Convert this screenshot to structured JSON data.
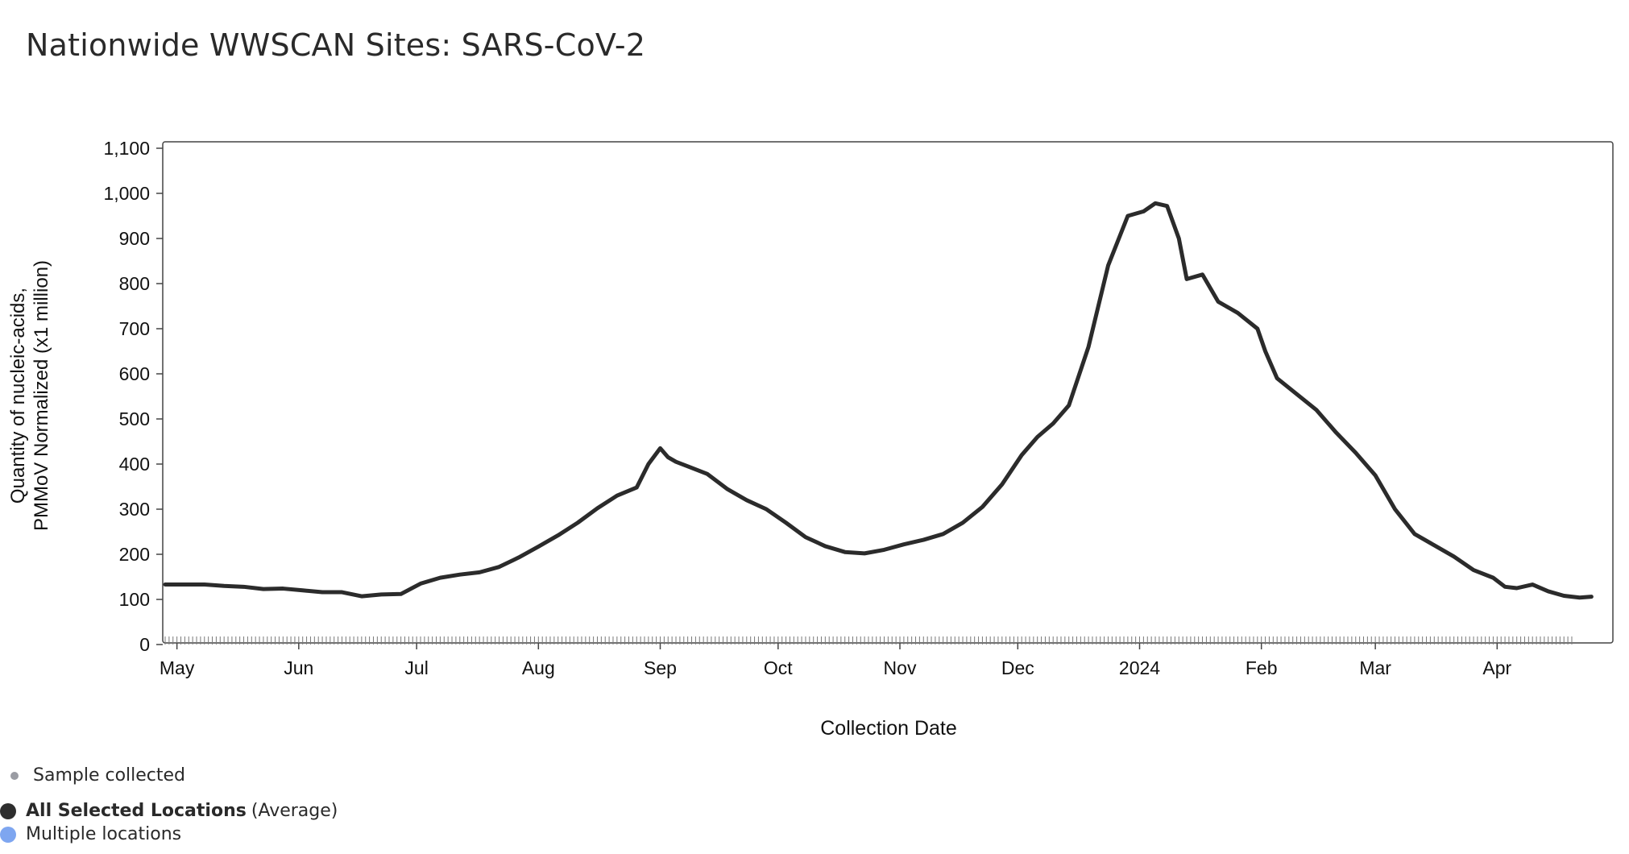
{
  "title": "Nationwide WWSCAN Sites: SARS-CoV-2",
  "colors": {
    "line": "#2b2b2b",
    "sample_dot": "#9a9ca3",
    "all_locations": "#2e2e2e",
    "multiple_locations": "#7ea6f0",
    "axis": "#444444"
  },
  "legend": {
    "sample_collected": "Sample collected",
    "all_selected_bold": "All Selected Locations",
    "all_selected_suffix": "(Average)",
    "multiple_locations": "Multiple locations"
  },
  "chart_data": {
    "type": "line",
    "title": "Nationwide WWSCAN Sites: SARS-CoV-2",
    "xlabel": "Collection Date",
    "ylabel_lines": [
      "Quantity of nucleic-acids,",
      "PMMoV Normalized (x1 million)"
    ],
    "ylim": [
      0,
      1100
    ],
    "yticks": [
      0,
      100,
      200,
      300,
      400,
      500,
      600,
      700,
      800,
      900,
      1000,
      1100
    ],
    "ytick_labels": [
      "0",
      "100",
      "200",
      "300",
      "400",
      "500",
      "600",
      "700",
      "800",
      "900",
      "1,000",
      "1,100"
    ],
    "xlim": [
      "2023-04-28",
      "2024-04-28"
    ],
    "xticks": [
      {
        "date": "2023-05-01",
        "label": "May"
      },
      {
        "date": "2023-06-01",
        "label": "Jun"
      },
      {
        "date": "2023-07-01",
        "label": "Jul"
      },
      {
        "date": "2023-08-01",
        "label": "Aug"
      },
      {
        "date": "2023-09-01",
        "label": "Sep"
      },
      {
        "date": "2023-10-01",
        "label": "Oct"
      },
      {
        "date": "2023-11-01",
        "label": "Nov"
      },
      {
        "date": "2023-12-01",
        "label": "Dec"
      },
      {
        "date": "2024-01-01",
        "label": "2024"
      },
      {
        "date": "2024-02-01",
        "label": "Feb"
      },
      {
        "date": "2024-03-01",
        "label": "Mar"
      },
      {
        "date": "2024-04-01",
        "label": "Apr"
      }
    ],
    "grid": false,
    "legend_position": "bottom-left",
    "series": [
      {
        "points": [
          [
            "2023-04-28",
            133
          ],
          [
            "2023-05-03",
            133
          ],
          [
            "2023-05-08",
            133
          ],
          [
            "2023-05-13",
            130
          ],
          [
            "2023-05-18",
            128
          ],
          [
            "2023-05-23",
            123
          ],
          [
            "2023-05-28",
            124
          ],
          [
            "2023-06-02",
            120
          ],
          [
            "2023-06-07",
            116
          ],
          [
            "2023-06-12",
            116
          ],
          [
            "2023-06-17",
            107
          ],
          [
            "2023-06-22",
            111
          ],
          [
            "2023-06-27",
            112
          ],
          [
            "2023-07-02",
            135
          ],
          [
            "2023-07-07",
            148
          ],
          [
            "2023-07-12",
            155
          ],
          [
            "2023-07-17",
            160
          ],
          [
            "2023-07-22",
            172
          ],
          [
            "2023-07-27",
            193
          ],
          [
            "2023-08-01",
            217
          ],
          [
            "2023-08-06",
            242
          ],
          [
            "2023-08-11",
            270
          ],
          [
            "2023-08-16",
            302
          ],
          [
            "2023-08-21",
            330
          ],
          [
            "2023-08-26",
            348
          ],
          [
            "2023-08-29",
            400
          ],
          [
            "2023-09-01",
            435
          ],
          [
            "2023-09-03",
            415
          ],
          [
            "2023-09-05",
            405
          ],
          [
            "2023-09-08",
            395
          ],
          [
            "2023-09-13",
            378
          ],
          [
            "2023-09-18",
            345
          ],
          [
            "2023-09-23",
            320
          ],
          [
            "2023-09-28",
            300
          ],
          [
            "2023-10-03",
            270
          ],
          [
            "2023-10-08",
            238
          ],
          [
            "2023-10-13",
            218
          ],
          [
            "2023-10-18",
            205
          ],
          [
            "2023-10-23",
            202
          ],
          [
            "2023-10-28",
            210
          ],
          [
            "2023-11-02",
            222
          ],
          [
            "2023-11-07",
            232
          ],
          [
            "2023-11-12",
            245
          ],
          [
            "2023-11-17",
            270
          ],
          [
            "2023-11-22",
            305
          ],
          [
            "2023-11-27",
            355
          ],
          [
            "2023-12-02",
            420
          ],
          [
            "2023-12-06",
            460
          ],
          [
            "2023-12-10",
            490
          ],
          [
            "2023-12-14",
            530
          ],
          [
            "2023-12-19",
            660
          ],
          [
            "2023-12-24",
            840
          ],
          [
            "2023-12-29",
            950
          ],
          [
            "2024-01-02",
            960
          ],
          [
            "2024-01-05",
            978
          ],
          [
            "2024-01-08",
            972
          ],
          [
            "2024-01-11",
            900
          ],
          [
            "2024-01-13",
            810
          ],
          [
            "2024-01-17",
            820
          ],
          [
            "2024-01-21",
            760
          ],
          [
            "2024-01-26",
            735
          ],
          [
            "2024-01-31",
            700
          ],
          [
            "2024-02-02",
            650
          ],
          [
            "2024-02-05",
            590
          ],
          [
            "2024-02-10",
            555
          ],
          [
            "2024-02-15",
            520
          ],
          [
            "2024-02-20",
            470
          ],
          [
            "2024-02-25",
            425
          ],
          [
            "2024-03-01",
            375
          ],
          [
            "2024-03-06",
            300
          ],
          [
            "2024-03-11",
            245
          ],
          [
            "2024-03-16",
            220
          ],
          [
            "2024-03-21",
            195
          ],
          [
            "2024-03-26",
            165
          ],
          [
            "2024-03-31",
            148
          ],
          [
            "2024-04-03",
            128
          ],
          [
            "2024-04-06",
            125
          ],
          [
            "2024-04-10",
            133
          ],
          [
            "2024-04-14",
            118
          ],
          [
            "2024-04-18",
            108
          ],
          [
            "2024-04-22",
            104
          ],
          [
            "2024-04-25",
            106
          ]
        ]
      }
    ]
  }
}
